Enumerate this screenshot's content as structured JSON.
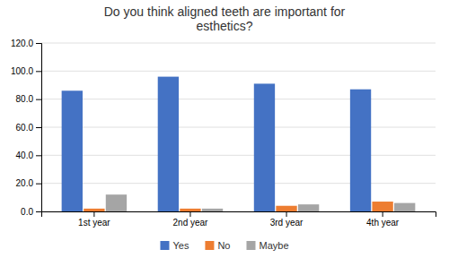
{
  "chart_data": {
    "type": "bar",
    "title": "Do you think aligned teeth are important for\nesthetics?",
    "categories": [
      "1st year",
      "2nd year",
      "3rd year",
      "4th year"
    ],
    "series": [
      {
        "name": "Yes",
        "color": "#4472C4",
        "values": [
          86,
          96,
          91,
          87
        ]
      },
      {
        "name": "No",
        "color": "#ED7D31",
        "values": [
          2,
          2,
          4,
          7
        ]
      },
      {
        "name": "Maybe",
        "color": "#A5A5A5",
        "values": [
          12,
          2,
          5,
          6
        ]
      }
    ],
    "ylim": [
      0,
      120
    ],
    "yticks": [
      {
        "value": 0,
        "label": "0.0"
      },
      {
        "value": 20,
        "label": "20.0"
      },
      {
        "value": 40,
        "label": "40.0"
      },
      {
        "value": 60,
        "label": "60.0"
      },
      {
        "value": 80,
        "label": "80.0"
      },
      {
        "value": 100,
        "label": "100.0"
      },
      {
        "value": 120,
        "label": "120.0"
      }
    ],
    "grid": true,
    "legend": "bottom"
  }
}
